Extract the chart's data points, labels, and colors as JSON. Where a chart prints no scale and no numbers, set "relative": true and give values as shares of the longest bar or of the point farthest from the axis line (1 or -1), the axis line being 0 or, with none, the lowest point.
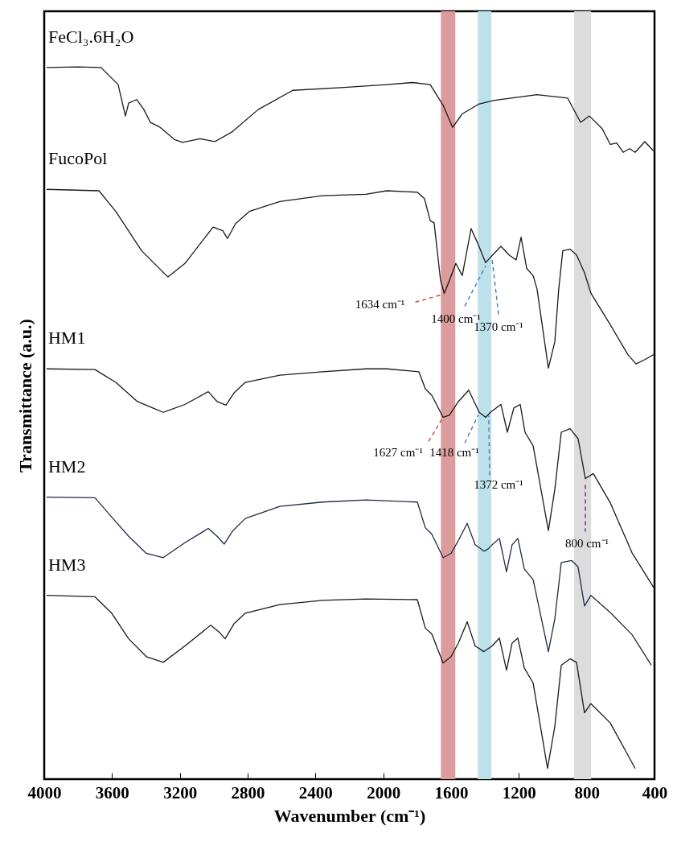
{
  "chart_data": {
    "type": "line",
    "relative": true,
    "xlabel": "Wavenumber (cm⁻¹)",
    "ylabel": "Transmittance (a.u.)",
    "xlim": [
      4000,
      400
    ],
    "xticks": [
      4000,
      3600,
      3200,
      2800,
      2400,
      2000,
      1600,
      1200,
      800,
      400
    ],
    "grid": false,
    "series": [
      {
        "name": "FeCl₃.6H₂O",
        "color": "#1a1a1a",
        "x": [
          3986,
          3800,
          3665,
          3564,
          3521,
          3502,
          3455,
          3412,
          3374,
          3322,
          3232,
          3184,
          3080,
          2994,
          2890,
          2738,
          2534,
          2231,
          1979,
          1828,
          1723,
          1647,
          1591,
          1534,
          1434,
          1344,
          1093,
          912,
          836,
          784,
          708,
          661,
          623,
          585,
          547,
          514,
          457,
          405
        ],
        "values": [
          0.999,
          1.0,
          0.999,
          0.975,
          0.931,
          0.949,
          0.954,
          0.94,
          0.922,
          0.916,
          0.898,
          0.894,
          0.899,
          0.895,
          0.909,
          0.94,
          0.967,
          0.971,
          0.975,
          0.978,
          0.975,
          0.946,
          0.915,
          0.934,
          0.948,
          0.953,
          0.961,
          0.956,
          0.922,
          0.931,
          0.913,
          0.891,
          0.893,
          0.88,
          0.885,
          0.88,
          0.895,
          0.882
        ]
      },
      {
        "name": "FucoPol",
        "color": "#1a1a1a",
        "x": [
          3986,
          3677,
          3578,
          3426,
          3270,
          3170,
          3004,
          2947,
          2919,
          2871,
          2790,
          2610,
          2359,
          2103,
          1979,
          1799,
          1757,
          1723,
          1700,
          1662,
          1640,
          1610,
          1572,
          1534,
          1482,
          1444,
          1396,
          1358,
          1306,
          1254,
          1216,
          1187,
          1154,
          1116,
          1093,
          1026,
          988,
          965,
          941,
          898,
          860,
          813,
          775,
          661,
          557,
          509,
          457,
          405
        ],
        "values": [
          0.828,
          0.826,
          0.797,
          0.742,
          0.705,
          0.724,
          0.775,
          0.77,
          0.759,
          0.78,
          0.797,
          0.811,
          0.819,
          0.821,
          0.826,
          0.824,
          0.815,
          0.784,
          0.781,
          0.7,
          0.682,
          0.7,
          0.724,
          0.707,
          0.773,
          0.753,
          0.725,
          0.735,
          0.748,
          0.735,
          0.729,
          0.761,
          0.717,
          0.707,
          0.688,
          0.577,
          0.614,
          0.688,
          0.742,
          0.744,
          0.736,
          0.711,
          0.682,
          0.638,
          0.596,
          0.583,
          0.589,
          0.596
        ]
      },
      {
        "name": "HM1",
        "color": "#1a1a1a",
        "x": [
          3986,
          3701,
          3578,
          3450,
          3298,
          3170,
          3032,
          2980,
          2928,
          2881,
          2814,
          2610,
          2359,
          2103,
          1979,
          1790,
          1752,
          1714,
          1647,
          1610,
          1557,
          1496,
          1434,
          1396,
          1368,
          1306,
          1268,
          1230,
          1192,
          1164,
          1116,
          1026,
          988,
          950,
          898,
          851,
          808,
          761,
          661,
          533,
          405
        ],
        "values": [
          0.576,
          0.575,
          0.557,
          0.53,
          0.515,
          0.526,
          0.544,
          0.53,
          0.525,
          0.542,
          0.557,
          0.567,
          0.572,
          0.576,
          0.576,
          0.572,
          0.548,
          0.539,
          0.508,
          0.511,
          0.53,
          0.546,
          0.515,
          0.508,
          0.515,
          0.526,
          0.487,
          0.521,
          0.526,
          0.487,
          0.468,
          0.349,
          0.407,
          0.487,
          0.492,
          0.478,
          0.422,
          0.429,
          0.388,
          0.318,
          0.269
        ]
      },
      {
        "name": "HM2",
        "color": "#1f2a44",
        "x": [
          3986,
          3701,
          3602,
          3502,
          3398,
          3298,
          3170,
          3032,
          2980,
          2938,
          2890,
          2814,
          2610,
          2359,
          2103,
          1799,
          1752,
          1714,
          1647,
          1600,
          1557,
          1505,
          1458,
          1406,
          1382,
          1358,
          1315,
          1273,
          1240,
          1206,
          1168,
          1116,
          1026,
          988,
          950,
          889,
          851,
          813,
          775,
          661,
          533,
          419
        ],
        "values": [
          0.396,
          0.395,
          0.368,
          0.341,
          0.317,
          0.311,
          0.332,
          0.352,
          0.341,
          0.33,
          0.348,
          0.366,
          0.383,
          0.389,
          0.392,
          0.389,
          0.353,
          0.344,
          0.311,
          0.317,
          0.335,
          0.359,
          0.329,
          0.32,
          0.323,
          0.329,
          0.338,
          0.291,
          0.329,
          0.338,
          0.295,
          0.28,
          0.179,
          0.225,
          0.304,
          0.307,
          0.298,
          0.243,
          0.258,
          0.234,
          0.203,
          0.16
        ]
      },
      {
        "name": "HM3",
        "color": "#1a1a1a",
        "x": [
          3986,
          3701,
          3602,
          3502,
          3398,
          3298,
          3170,
          3018,
          2966,
          2933,
          2881,
          2814,
          2610,
          2359,
          2103,
          1799,
          1752,
          1714,
          1647,
          1600,
          1557,
          1505,
          1458,
          1406,
          1382,
          1358,
          1315,
          1273,
          1240,
          1206,
          1168,
          1116,
          1031,
          988,
          950,
          898,
          860,
          813,
          775,
          661,
          514
        ],
        "values": [
          0.258,
          0.256,
          0.233,
          0.197,
          0.172,
          0.164,
          0.187,
          0.216,
          0.206,
          0.197,
          0.218,
          0.233,
          0.245,
          0.251,
          0.253,
          0.252,
          0.212,
          0.204,
          0.163,
          0.172,
          0.191,
          0.221,
          0.187,
          0.179,
          0.183,
          0.187,
          0.198,
          0.153,
          0.191,
          0.198,
          0.156,
          0.135,
          0.015,
          0.074,
          0.16,
          0.169,
          0.164,
          0.093,
          0.106,
          0.079,
          0.015
        ]
      }
    ],
    "bands": [
      {
        "axis": "x",
        "from": 1660,
        "to": 1575,
        "color": "#dc9c9c"
      },
      {
        "axis": "x",
        "from": 1443,
        "to": 1362,
        "color": "#bde1eb"
      },
      {
        "axis": "x",
        "from": 874,
        "to": 774,
        "color": "#dcdcdc"
      }
    ],
    "annotations": [
      {
        "text": "1634 cm⁻¹",
        "x": 1640,
        "y": 0.682
      },
      {
        "text": "1400 cm⁻¹",
        "x": 1396,
        "y": 0.725
      },
      {
        "text": "1370 cm⁻¹",
        "x": 1358,
        "y": 0.735
      },
      {
        "text": "1627 cm⁻¹",
        "x": 1647,
        "y": 0.508
      },
      {
        "text": "1418 cm⁻¹",
        "x": 1434,
        "y": 0.515
      },
      {
        "text": "1372 cm⁻¹",
        "x": 1368,
        "y": 0.515
      },
      {
        "text": "800 cm⁻¹",
        "x": 808,
        "y": 0.422
      }
    ]
  }
}
